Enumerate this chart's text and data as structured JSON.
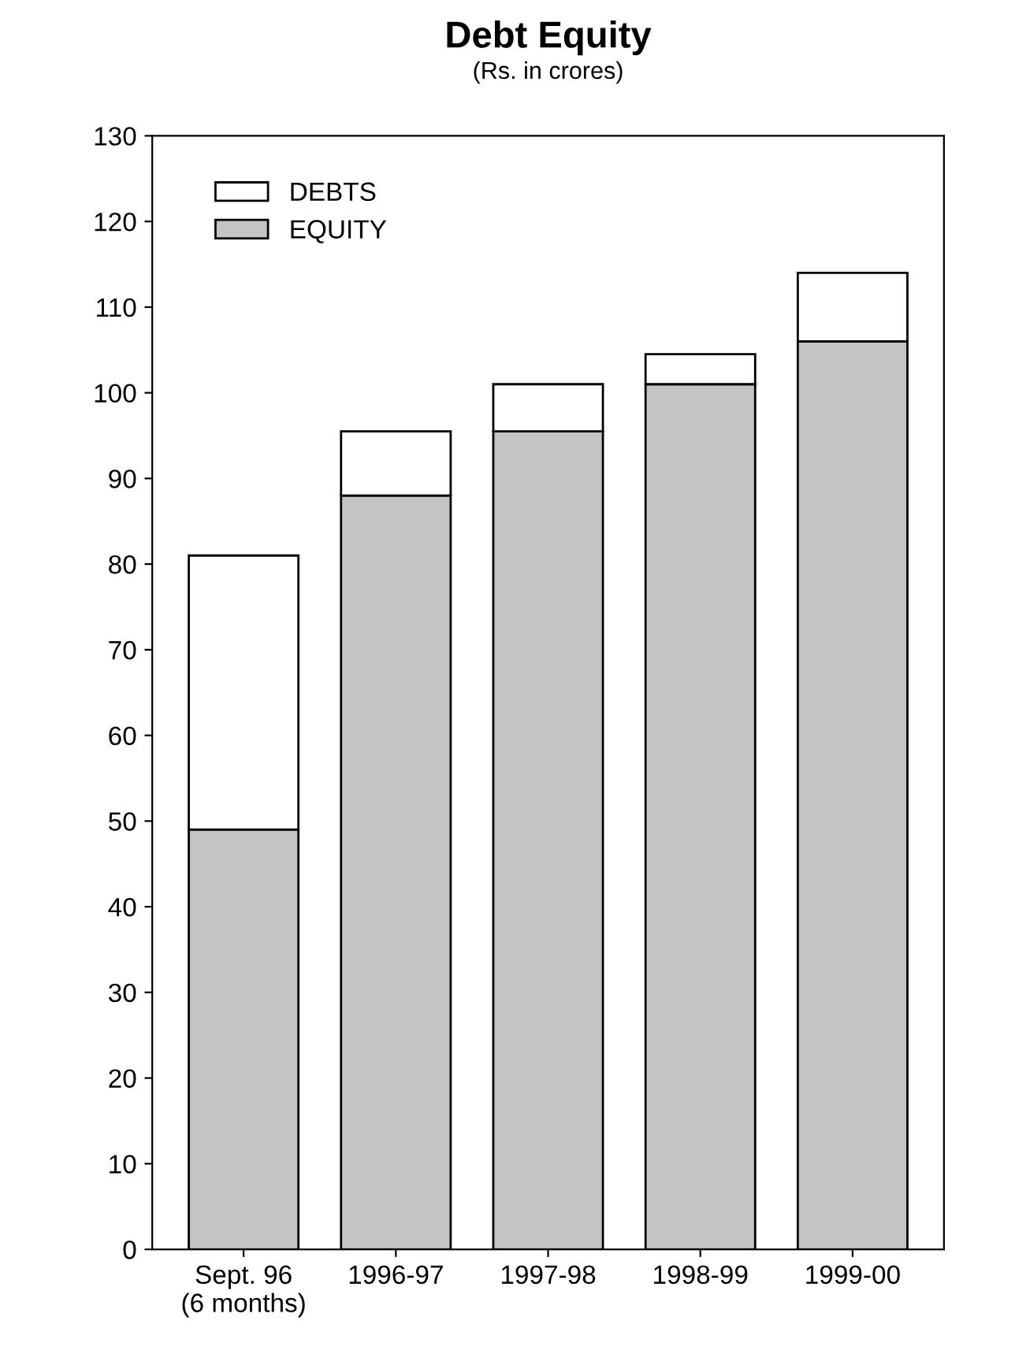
{
  "chart_data": {
    "type": "bar",
    "title": "Debt Equity",
    "subtitle": "(Rs. in crores)",
    "stacked": true,
    "categories": [
      "Sept. 96\n(6 months)",
      "1996-97",
      "1997-98",
      "1998-99",
      "1999-00"
    ],
    "series": [
      {
        "name": "EQUITY",
        "color": "#c4c4c4",
        "values": [
          49,
          88,
          95.5,
          101,
          106
        ]
      },
      {
        "name": "DEBTS",
        "color": "#ffffff",
        "values": [
          32,
          7.5,
          5.5,
          3.5,
          8
        ]
      }
    ],
    "ylim": [
      0,
      130
    ],
    "yticks": [
      0,
      10,
      20,
      30,
      40,
      50,
      60,
      70,
      80,
      90,
      100,
      110,
      120,
      130
    ],
    "grid": false,
    "legend": "top left"
  }
}
